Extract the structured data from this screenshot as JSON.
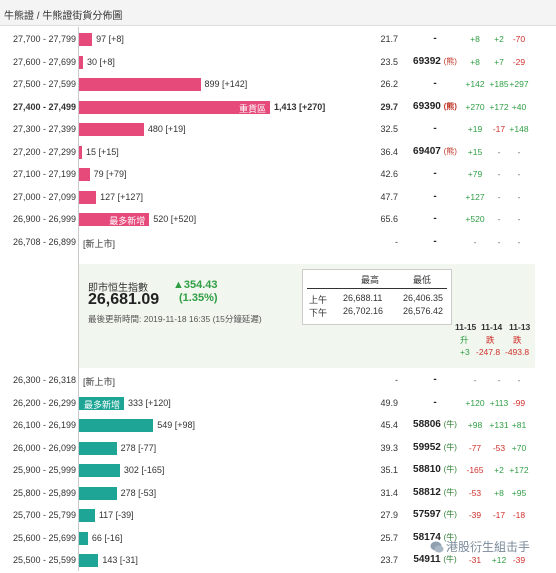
{
  "header": {
    "title": "牛熊證 / 牛熊證街貨分佈圖"
  },
  "rows_top": [
    {
      "range": "27,700 - 27,799",
      "label": "97 [+8]",
      "bar": 97,
      "tag": "",
      "pct": "21.7",
      "code": "-",
      "suffix": "",
      "d1": "+8",
      "d1c": "pos",
      "d2": "+2",
      "d2c": "pos",
      "d3": "-70",
      "d3c": "neg"
    },
    {
      "range": "27,600 - 27,699",
      "label": "30 [+8]",
      "bar": 30,
      "tag": "",
      "pct": "23.5",
      "code": "69392",
      "suffix": "(熊)",
      "d1": "+8",
      "d1c": "pos",
      "d2": "+7",
      "d2c": "pos",
      "d3": "-29",
      "d3c": "neg"
    },
    {
      "range": "27,500 - 27,599",
      "label": "899 [+142]",
      "bar": 899,
      "tag": "",
      "pct": "26.2",
      "code": "-",
      "suffix": "",
      "d1": "+142",
      "d1c": "pos",
      "d2": "+185",
      "d2c": "pos",
      "d3": "+297",
      "d3c": "pos"
    },
    {
      "range": "27,400 - 27,499",
      "label": "1,413 [+270]",
      "bar": 1413,
      "tag": "重貨區",
      "pct": "29.7",
      "code": "69390",
      "suffix": "(熊)",
      "d1": "+270",
      "d1c": "pos",
      "d2": "+172",
      "d2c": "pos",
      "d3": "+40",
      "d3c": "pos",
      "bold": true
    },
    {
      "range": "27,300 - 27,399",
      "label": "480 [+19]",
      "bar": 480,
      "tag": "",
      "pct": "32.5",
      "code": "-",
      "suffix": "",
      "d1": "+19",
      "d1c": "pos",
      "d2": "-17",
      "d2c": "neg",
      "d3": "+148",
      "d3c": "pos"
    },
    {
      "range": "27,200 - 27,299",
      "label": "15 [+15]",
      "bar": 15,
      "tag": "",
      "pct": "36.4",
      "code": "69407",
      "suffix": "(熊)",
      "d1": "+15",
      "d1c": "pos",
      "d2": "-",
      "d2c": "neu",
      "d3": "-",
      "d3c": "neu"
    },
    {
      "range": "27,100 - 27,199",
      "label": "79 [+79]",
      "bar": 79,
      "tag": "",
      "pct": "42.6",
      "code": "-",
      "suffix": "",
      "d1": "+79",
      "d1c": "pos",
      "d2": "-",
      "d2c": "neu",
      "d3": "-",
      "d3c": "neu"
    },
    {
      "range": "27,000 - 27,099",
      "label": "127 [+127]",
      "bar": 127,
      "tag": "",
      "pct": "47.7",
      "code": "-",
      "suffix": "",
      "d1": "+127",
      "d1c": "pos",
      "d2": "-",
      "d2c": "neu",
      "d3": "-",
      "d3c": "neu"
    },
    {
      "range": "26,900 - 26,999",
      "label": "520 [+520]",
      "bar": 520,
      "tag": "最多新增",
      "pct": "65.6",
      "code": "-",
      "suffix": "",
      "d1": "+520",
      "d1c": "pos",
      "d2": "-",
      "d2c": "neu",
      "d3": "-",
      "d3c": "neu"
    },
    {
      "range": "26,708 - 26,899",
      "label": "[新上市]",
      "bar": 0,
      "tag": "",
      "pct": "-",
      "code": "-",
      "suffix": "",
      "d1": "-",
      "d1c": "neu",
      "d2": "-",
      "d2c": "neu",
      "d3": "-",
      "d3c": "neu"
    }
  ],
  "rows_bottom": [
    {
      "range": "26,300 - 26,318",
      "label": "[新上市]",
      "bar": 0,
      "tag": "",
      "pct": "-",
      "code": "-",
      "suffix": "",
      "d1": "-",
      "d1c": "neu",
      "d2": "-",
      "d2c": "neu",
      "d3": "-",
      "d3c": "neu"
    },
    {
      "range": "26,200 - 26,299",
      "label": "333 [+120]",
      "bar": 333,
      "tag": "最多新增",
      "pct": "49.9",
      "code": "-",
      "suffix": "",
      "d1": "+120",
      "d1c": "pos",
      "d2": "+113",
      "d2c": "pos",
      "d3": "-99",
      "d3c": "neg"
    },
    {
      "range": "26,100 - 26,199",
      "label": "549 [+98]",
      "bar": 549,
      "tag": "",
      "pct": "45.4",
      "code": "58806",
      "suffix": "(牛)",
      "d1": "+98",
      "d1c": "pos",
      "d2": "+131",
      "d2c": "pos",
      "d3": "+81",
      "d3c": "pos"
    },
    {
      "range": "26,000 - 26,099",
      "label": "278 [-77]",
      "bar": 278,
      "tag": "",
      "pct": "39.3",
      "code": "59952",
      "suffix": "(牛)",
      "d1": "-77",
      "d1c": "neg",
      "d2": "-53",
      "d2c": "neg",
      "d3": "+70",
      "d3c": "pos"
    },
    {
      "range": "25,900 - 25,999",
      "label": "302 [-165]",
      "bar": 302,
      "tag": "",
      "pct": "35.1",
      "code": "58810",
      "suffix": "(牛)",
      "d1": "-165",
      "d1c": "neg",
      "d2": "+2",
      "d2c": "pos",
      "d3": "+172",
      "d3c": "pos"
    },
    {
      "range": "25,800 - 25,899",
      "label": "278 [-53]",
      "bar": 278,
      "tag": "",
      "pct": "31.4",
      "code": "58812",
      "suffix": "(牛)",
      "d1": "-53",
      "d1c": "neg",
      "d2": "+8",
      "d2c": "pos",
      "d3": "+95",
      "d3c": "pos"
    },
    {
      "range": "25,700 - 25,799",
      "label": "117 [-39]",
      "bar": 117,
      "tag": "",
      "pct": "27.9",
      "code": "57597",
      "suffix": "(牛)",
      "d1": "-39",
      "d1c": "neg",
      "d2": "-17",
      "d2c": "neg",
      "d3": "-18",
      "d3c": "neg"
    },
    {
      "range": "25,600 - 25,699",
      "label": "66 [-16]",
      "bar": 66,
      "tag": "",
      "pct": "25.7",
      "code": "58174",
      "suffix": "(牛)",
      "d1": "",
      "d1c": "neu",
      "d2": "",
      "d2c": "neu",
      "d3": "",
      "d3c": "neu"
    },
    {
      "range": "25,500 - 25,599",
      "label": "143 [-31]",
      "bar": 143,
      "tag": "",
      "pct": "23.7",
      "code": "54911",
      "suffix": "(牛)",
      "d1": "-31",
      "d1c": "neg",
      "d2": "+12",
      "d2c": "pos",
      "d3": "-39",
      "d3c": "neg"
    }
  ],
  "index_panel": {
    "label": "即市恒生指數",
    "value": "26,681.09",
    "change": "▲354.43",
    "change_pct": "(1.35%)",
    "update": "最後更新時間: 2019-11-18 16:35 (15分鐘延遲)",
    "hl_head_high": "最高",
    "hl_head_low": "最低",
    "am_label": "上午",
    "am_high": "26,688.11",
    "am_low": "26,406.35",
    "pm_label": "下午",
    "pm_high": "26,702.16",
    "pm_low": "26,576.42",
    "dates": [
      "11-15",
      "11-14",
      "11-13"
    ],
    "chg_labels": [
      "升",
      "跌",
      "跌"
    ],
    "chg_values": [
      "+3",
      "-247.8",
      "-493.8"
    ]
  },
  "watermark": {
    "text": "港股衍生組击手"
  },
  "colors": {
    "bear": "#e64a7b",
    "bull": "#1fa596",
    "up": "#2f9e44",
    "down": "#d0312d"
  }
}
